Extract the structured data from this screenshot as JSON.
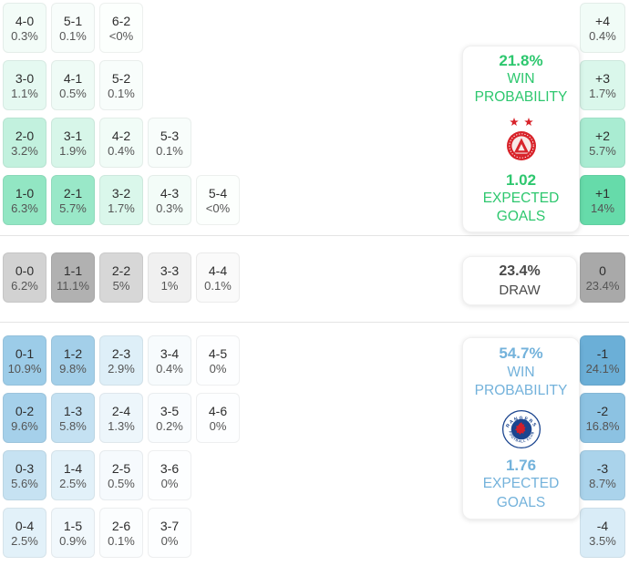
{
  "chart_data": {
    "type": "heatmap",
    "sections": {
      "home": {
        "win_probability": "21.8%",
        "win_probability_label": "WIN PROBABILITY",
        "expected_goals": "1.02",
        "expected_goals_label": "EXPECTED GOALS",
        "team_logo": "aberdeen-crest",
        "accent_color": "#2dc76e",
        "rows": [
          [
            {
              "score": "4-0",
              "pct": "0.3%",
              "bg": "#f3fcf8"
            },
            {
              "score": "5-1",
              "pct": "0.1%",
              "bg": "#f8fdfb"
            },
            {
              "score": "6-2",
              "pct": "<0%",
              "bg": "#fcfffd"
            }
          ],
          [
            {
              "score": "3-0",
              "pct": "1.1%",
              "bg": "#e5f9f1"
            },
            {
              "score": "4-1",
              "pct": "0.5%",
              "bg": "#effbf6"
            },
            {
              "score": "5-2",
              "pct": "0.1%",
              "bg": "#f8fdfb"
            }
          ],
          [
            {
              "score": "2-0",
              "pct": "3.2%",
              "bg": "#c2f1de"
            },
            {
              "score": "3-1",
              "pct": "1.9%",
              "bg": "#d7f6e9"
            },
            {
              "score": "4-2",
              "pct": "0.4%",
              "bg": "#f1fcf7"
            },
            {
              "score": "5-3",
              "pct": "0.1%",
              "bg": "#f8fdfb"
            }
          ],
          [
            {
              "score": "1-0",
              "pct": "6.3%",
              "bg": "#92e6c3"
            },
            {
              "score": "2-1",
              "pct": "5.7%",
              "bg": "#99e8c8"
            },
            {
              "score": "3-2",
              "pct": "1.7%",
              "bg": "#daf7eb"
            },
            {
              "score": "4-3",
              "pct": "0.3%",
              "bg": "#f3fcf8"
            },
            {
              "score": "5-4",
              "pct": "<0%",
              "bg": "#fcfffd"
            }
          ]
        ],
        "margins": [
          {
            "score": "+4",
            "pct": "0.4%",
            "bg": "#f1fcf7"
          },
          {
            "score": "+3",
            "pct": "1.7%",
            "bg": "#daf7eb"
          },
          {
            "score": "+2",
            "pct": "5.7%",
            "bg": "#a9ecd2"
          },
          {
            "score": "+1",
            "pct": "14%",
            "bg": "#66dbaa"
          }
        ]
      },
      "draw": {
        "probability": "23.4%",
        "label": "DRAW",
        "accent_color": "#4a4a4a",
        "rows": [
          [
            {
              "score": "0-0",
              "pct": "6.2%",
              "bg": "#d2d2d2"
            },
            {
              "score": "1-1",
              "pct": "11.1%",
              "bg": "#b1b1b1"
            },
            {
              "score": "2-2",
              "pct": "5%",
              "bg": "#d7d7d7"
            },
            {
              "score": "3-3",
              "pct": "1%",
              "bg": "#f0f0f0"
            },
            {
              "score": "4-4",
              "pct": "0.1%",
              "bg": "#fafafa"
            }
          ]
        ],
        "margins": [
          {
            "score": "0",
            "pct": "23.4%",
            "bg": "#a9a9a9"
          }
        ]
      },
      "away": {
        "win_probability": "54.7%",
        "win_probability_label": "WIN PROBABILITY",
        "expected_goals": "1.76",
        "expected_goals_label": "EXPECTED GOALS",
        "team_logo": "rangers-crest",
        "accent_color": "#73b2db",
        "rows": [
          [
            {
              "score": "0-1",
              "pct": "10.9%",
              "bg": "#9ccce8"
            },
            {
              "score": "1-2",
              "pct": "9.8%",
              "bg": "#a3cfe9"
            },
            {
              "score": "2-3",
              "pct": "2.9%",
              "bg": "#deeff8"
            },
            {
              "score": "3-4",
              "pct": "0.4%",
              "bg": "#f7fbfd"
            },
            {
              "score": "4-5",
              "pct": "0%",
              "bg": "#fdfeff"
            }
          ],
          [
            {
              "score": "0-2",
              "pct": "9.6%",
              "bg": "#a5d0ea"
            },
            {
              "score": "1-3",
              "pct": "5.8%",
              "bg": "#c4e1f2"
            },
            {
              "score": "2-4",
              "pct": "1.3%",
              "bg": "#edf6fb"
            },
            {
              "score": "3-5",
              "pct": "0.2%",
              "bg": "#f9fcfe"
            },
            {
              "score": "4-6",
              "pct": "0%",
              "bg": "#fdfeff"
            }
          ],
          [
            {
              "score": "0-3",
              "pct": "5.6%",
              "bg": "#c6e2f2"
            },
            {
              "score": "1-4",
              "pct": "2.5%",
              "bg": "#e2f1f9"
            },
            {
              "score": "2-5",
              "pct": "0.5%",
              "bg": "#f6fafd"
            },
            {
              "score": "3-6",
              "pct": "0%",
              "bg": "#fdfeff"
            }
          ],
          [
            {
              "score": "0-4",
              "pct": "2.5%",
              "bg": "#e2f1f9"
            },
            {
              "score": "1-5",
              "pct": "0.9%",
              "bg": "#f1f8fc"
            },
            {
              "score": "2-6",
              "pct": "0.1%",
              "bg": "#fbfdfe"
            },
            {
              "score": "3-7",
              "pct": "0%",
              "bg": "#fdfeff"
            }
          ]
        ],
        "margins": [
          {
            "score": "-1",
            "pct": "24.1%",
            "bg": "#6bafd7"
          },
          {
            "score": "-2",
            "pct": "16.8%",
            "bg": "#8cc2e2"
          },
          {
            "score": "-3",
            "pct": "8.7%",
            "bg": "#aad3eb"
          },
          {
            "score": "-4",
            "pct": "3.5%",
            "bg": "#d9ecf7"
          }
        ]
      }
    }
  }
}
